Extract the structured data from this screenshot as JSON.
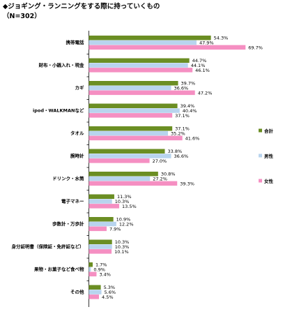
{
  "title": "◆ジョギング・ランニングをする際に持っていくもの",
  "subtitle": "（N=302）",
  "chart_data": {
    "type": "bar",
    "orientation": "horizontal",
    "unit": "%",
    "categories": [
      "携帯電話",
      "財布・小銭入れ・現金",
      "カギ",
      "ipod・WALKMANなど",
      "タオル",
      "腕時計",
      "ドリンク・水筒",
      "電子マネー",
      "歩数計・万歩計",
      "身分証明書（保険証・免許証など）",
      "果物・お菓子など食べ物",
      "その他"
    ],
    "series": [
      {
        "name": "合計",
        "color": "#6b8e23",
        "values": [
          54.3,
          44.7,
          39.7,
          39.4,
          37.1,
          33.8,
          30.8,
          11.3,
          10.9,
          10.3,
          1.7,
          5.3
        ]
      },
      {
        "name": "男性",
        "color": "#b8d4ee",
        "values": [
          47.9,
          44.1,
          36.6,
          40.4,
          35.2,
          36.6,
          27.2,
          10.3,
          12.2,
          10.3,
          0.9,
          5.6
        ]
      },
      {
        "name": "女性",
        "color": "#f58fc2",
        "values": [
          69.7,
          46.1,
          47.2,
          37.1,
          41.6,
          27.0,
          39.3,
          13.5,
          7.9,
          10.1,
          3.4,
          4.5
        ]
      }
    ],
    "value_labels": [
      [
        "54.3%",
        "47.9%",
        "69.7%"
      ],
      [
        "44.7%",
        "44.1%",
        "46.1%"
      ],
      [
        "39.7%",
        "36.6%",
        "47.2%"
      ],
      [
        "39.4%",
        "40.4%",
        "37.1%"
      ],
      [
        "37.1%",
        "35.2%",
        "41.6%"
      ],
      [
        "33.8%",
        "36.6%",
        "27.0%"
      ],
      [
        "30.8%",
        "27.2%",
        "39.3%"
      ],
      [
        "11.3%",
        "10.3%",
        "13.5%"
      ],
      [
        "10.9%",
        "12.2%",
        "7.9%"
      ],
      [
        "10.3%",
        "10.3%",
        "10.1%"
      ],
      [
        "1.7%",
        "0.9%",
        "3.4%"
      ],
      [
        "5.3%",
        "5.6%",
        "4.5%"
      ]
    ],
    "xlim": [
      0,
      80
    ],
    "grid": false,
    "legend_position": "right"
  }
}
